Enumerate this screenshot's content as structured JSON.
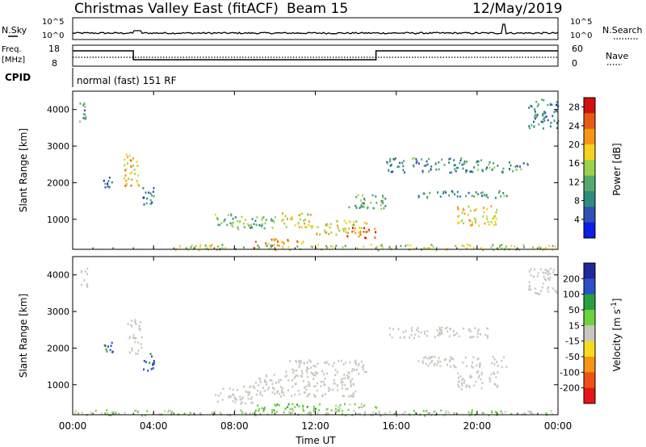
{
  "header": {
    "title": "Christmas Valley East (fitACF)",
    "beam": "Beam 15",
    "date": "12/May/2019"
  },
  "noise_panel": {
    "left_label": "N.Sky",
    "right_label": "N.Search",
    "left_ticks": [
      "10^5",
      "10^0"
    ],
    "right_ticks": [
      "10^5",
      "10^0"
    ]
  },
  "freq_panel": {
    "left_label_1": "Freq.",
    "left_label_2": "[MHz]",
    "right_label": "Nave",
    "left_ticks": [
      "18",
      "8"
    ],
    "right_ticks": [
      "60",
      "0"
    ]
  },
  "cpid_panel": {
    "label": "CPID",
    "text": "normal (fast) 151 RF"
  },
  "colors": {
    "power": [
      "#0a1ee6",
      "#3250b4",
      "#2d8c7d",
      "#55aa6e",
      "#9bd24b",
      "#f5d21e",
      "#f59614",
      "#e65a14",
      "#d20f0f"
    ],
    "velocity": [
      "#1e2896",
      "#2d50c8",
      "#28a03c",
      "#6ed23c",
      "#c8c8c0",
      "#f5dc1e",
      "#f59614",
      "#f05014",
      "#e61414"
    ]
  },
  "chart_data": [
    {
      "type": "heatmap",
      "ylabel": "Slant Range [km]",
      "xlabel": "Time UT",
      "y_ticks": [
        "1000",
        "2000",
        "3000",
        "4000"
      ],
      "y_tick_values": [
        1000,
        2000,
        3000,
        4000
      ],
      "ylim": [
        180,
        4500
      ],
      "x_ticks": [
        "00:00",
        "04:00",
        "08:00",
        "12:00",
        "16:00",
        "20:00",
        "00:00"
      ],
      "x_tick_values": [
        0,
        4,
        8,
        12,
        16,
        20,
        24
      ],
      "xlim": [
        0,
        24
      ],
      "colorbar_label": "Power [dB]",
      "colorbar_ticks": [
        "28",
        "24",
        "20",
        "16",
        "12",
        "8",
        "4"
      ],
      "colorbar_tick_values": [
        28,
        24,
        20,
        16,
        12,
        8,
        4
      ],
      "colorbar_range": [
        0,
        30
      ],
      "regions": [
        {
          "t": [
            0.3,
            0.7
          ],
          "r": [
            3600,
            4200
          ],
          "v": 10
        },
        {
          "t": [
            2.5,
            3.3
          ],
          "r": [
            1900,
            2800
          ],
          "v": 20
        },
        {
          "t": [
            3.3,
            4.0
          ],
          "r": [
            1400,
            1900
          ],
          "v": 8
        },
        {
          "t": [
            1.5,
            2.0
          ],
          "r": [
            1900,
            2200
          ],
          "v": 6
        },
        {
          "t": [
            7.0,
            8.0
          ],
          "r": [
            800,
            1200
          ],
          "v": 12
        },
        {
          "t": [
            8.0,
            10.0
          ],
          "r": [
            700,
            1100
          ],
          "v": 12
        },
        {
          "t": [
            10.3,
            12.0
          ],
          "r": [
            800,
            1200
          ],
          "v": 18
        },
        {
          "t": [
            12.0,
            14.5
          ],
          "r": [
            600,
            1000
          ],
          "v": 18
        },
        {
          "t": [
            13.5,
            15.0
          ],
          "r": [
            500,
            800
          ],
          "v": 24
        },
        {
          "t": [
            9.0,
            11.5
          ],
          "r": [
            300,
            500
          ],
          "v": 22
        },
        {
          "t": [
            13.5,
            15.5
          ],
          "r": [
            1300,
            1700
          ],
          "v": 12
        },
        {
          "t": [
            15.5,
            20.5
          ],
          "r": [
            2300,
            2700
          ],
          "v": 9
        },
        {
          "t": [
            17.0,
            21.5
          ],
          "r": [
            1600,
            1800
          ],
          "v": 10
        },
        {
          "t": [
            19.0,
            21.0
          ],
          "r": [
            850,
            1400
          ],
          "v": 18
        },
        {
          "t": [
            20.5,
            22.5
          ],
          "r": [
            2300,
            2600
          ],
          "v": 10
        },
        {
          "t": [
            22.5,
            24.0
          ],
          "r": [
            3500,
            4300
          ],
          "v": 8
        },
        {
          "t": [
            5.0,
            24.0
          ],
          "r": [
            180,
            330
          ],
          "v": 16
        }
      ]
    },
    {
      "type": "heatmap",
      "ylabel": "Slant Range [km]",
      "xlabel": "Time UT",
      "y_ticks": [
        "1000",
        "2000",
        "3000",
        "4000"
      ],
      "y_tick_values": [
        1000,
        2000,
        3000,
        4000
      ],
      "ylim": [
        180,
        4500
      ],
      "x_ticks": [
        "00:00",
        "04:00",
        "08:00",
        "12:00",
        "16:00",
        "20:00",
        "00:00"
      ],
      "x_tick_values": [
        0,
        4,
        8,
        12,
        16,
        20,
        24
      ],
      "xlim": [
        0,
        24
      ],
      "colorbar_label": "Velocity [m s^-1]",
      "colorbar_ticks": [
        "200",
        "100",
        "50",
        "15",
        "-15",
        "-50",
        "-100",
        "-200"
      ],
      "colorbar_tick_values": [
        200,
        100,
        50,
        15,
        -15,
        -50,
        -100,
        -200
      ],
      "colorbar_range": [
        -250,
        250
      ],
      "regions": [
        {
          "t": [
            0.3,
            0.7
          ],
          "r": [
            3700,
            4200
          ],
          "v": 0
        },
        {
          "t": [
            2.7,
            3.4
          ],
          "r": [
            1800,
            2800
          ],
          "v": 0
        },
        {
          "t": [
            3.4,
            4.0
          ],
          "r": [
            1400,
            1900
          ],
          "v": 150
        },
        {
          "t": [
            1.5,
            2.0
          ],
          "r": [
            1900,
            2200
          ],
          "v": 150
        },
        {
          "t": [
            7.0,
            9.0
          ],
          "r": [
            500,
            1000
          ],
          "v": 0
        },
        {
          "t": [
            9.0,
            14.0
          ],
          "r": [
            700,
            1300
          ],
          "v": 0
        },
        {
          "t": [
            10.5,
            14.5
          ],
          "r": [
            1300,
            1700
          ],
          "v": 0
        },
        {
          "t": [
            9.0,
            12.5
          ],
          "r": [
            300,
            500
          ],
          "v": 70
        },
        {
          "t": [
            12.5,
            15.0
          ],
          "r": [
            300,
            500
          ],
          "v": 40
        },
        {
          "t": [
            15.5,
            20.5
          ],
          "r": [
            2300,
            2600
          ],
          "v": 0
        },
        {
          "t": [
            17.0,
            21.5
          ],
          "r": [
            1500,
            1800
          ],
          "v": 0
        },
        {
          "t": [
            19.0,
            21.0
          ],
          "r": [
            900,
            1400
          ],
          "v": 0
        },
        {
          "t": [
            22.5,
            24.0
          ],
          "r": [
            3500,
            4200
          ],
          "v": 0
        },
        {
          "t": [
            0.0,
            24.0
          ],
          "r": [
            180,
            330
          ],
          "v": 30
        }
      ]
    }
  ]
}
